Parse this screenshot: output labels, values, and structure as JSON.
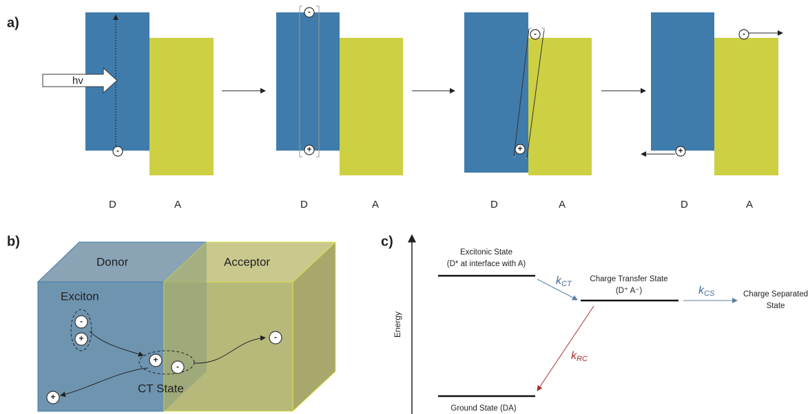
{
  "panel_a": {
    "label": "a)",
    "photon": "hv",
    "steps": [
      {
        "donor": "D",
        "acceptor": "A",
        "charges": [
          "-"
        ]
      },
      {
        "donor": "D",
        "acceptor": "A",
        "charges": [
          "-",
          "+"
        ]
      },
      {
        "donor": "D",
        "acceptor": "A",
        "charges": [
          "-",
          "+"
        ]
      },
      {
        "donor": "D",
        "acceptor": "A",
        "charges": [
          "-",
          "+"
        ]
      }
    ]
  },
  "panel_b": {
    "label": "b)",
    "donor": "Donor",
    "acceptor": "Acceptor",
    "exciton": "Exciton",
    "ct_state": "CT State",
    "exciton_charges": [
      "-",
      "+"
    ],
    "ct_charges": [
      "+",
      "-"
    ],
    "free_charges": [
      "-",
      "+"
    ]
  },
  "panel_c": {
    "label": "c)",
    "axis_label": "Energy",
    "excitonic_state": [
      "Excitonic State",
      "(D* at interface with A)"
    ],
    "ct_state": [
      "Charge Transfer State",
      "(D⁺ A⁻)"
    ],
    "cs_state": [
      "Charge Separated",
      "State"
    ],
    "ground_state": "Ground State (DA)",
    "rates": [
      {
        "symbol": "k",
        "subscript": "CT"
      },
      {
        "symbol": "k",
        "subscript": "CS"
      },
      {
        "symbol": "k",
        "subscript": "RC"
      }
    ]
  }
}
